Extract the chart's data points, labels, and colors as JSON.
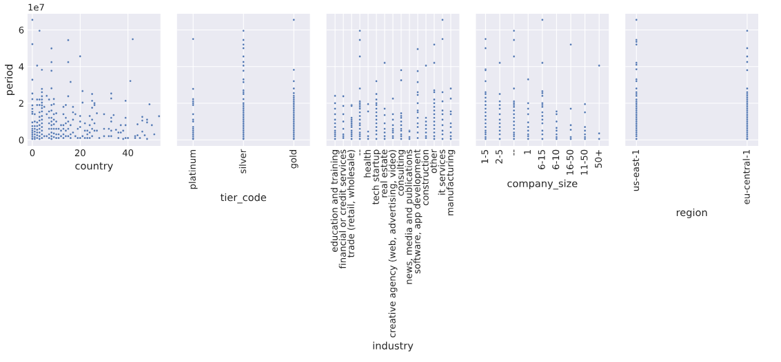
{
  "chart_data": [
    {
      "type": "scatter",
      "xlabel": "country",
      "ylabel": "period",
      "annotations": [
        "1e7"
      ],
      "xlim": [
        -2.0,
        53.6
      ],
      "xticks": [
        0,
        20,
        40
      ],
      "ylim": [
        -0.33,
        6.88
      ],
      "yticks": [
        0,
        2,
        4,
        6
      ],
      "grid": true,
      "marker": "circle",
      "series": [
        {
          "color": "#4c72b0",
          "x": [
            0,
            0,
            0,
            0,
            0,
            0,
            0,
            0,
            0,
            0,
            0,
            0,
            0,
            0,
            0,
            0,
            0,
            0,
            1,
            1,
            1,
            1,
            1,
            1,
            1,
            1,
            2,
            2,
            2,
            2,
            2,
            2,
            2,
            2,
            2,
            3,
            3,
            3,
            3,
            3,
            3,
            3,
            3,
            3,
            3,
            3,
            4,
            4,
            4,
            4,
            4,
            4,
            4,
            4,
            4,
            4,
            4,
            4,
            4,
            4,
            4,
            4,
            5,
            5,
            6,
            6,
            6,
            7,
            7,
            7,
            7,
            7,
            7,
            7,
            8,
            8,
            8,
            8,
            8,
            8,
            8,
            8,
            8,
            8,
            8,
            8,
            8,
            9,
            9,
            9,
            9,
            9,
            9,
            9,
            9,
            10,
            10,
            10,
            10,
            10,
            11,
            11,
            11,
            12,
            12,
            12,
            13,
            13,
            13,
            13,
            13,
            13,
            14,
            14,
            14,
            14,
            14,
            15,
            15,
            15,
            15,
            15,
            15,
            16,
            16,
            16,
            16,
            17,
            17,
            17,
            17,
            18,
            18,
            19,
            19,
            20,
            20,
            20,
            20,
            20,
            21,
            21,
            21,
            22,
            22,
            22,
            23,
            23,
            23,
            24,
            24,
            24,
            24,
            25,
            25,
            25,
            25,
            25,
            25,
            26,
            26,
            26,
            26,
            27,
            27,
            28,
            30,
            30,
            30,
            32,
            32,
            33,
            33,
            33,
            33,
            33,
            33,
            34,
            35,
            36,
            36,
            37,
            37,
            38,
            38,
            39,
            39,
            39,
            39,
            40,
            41,
            42,
            43,
            43,
            44,
            44,
            45,
            46,
            46,
            46,
            47,
            48,
            48,
            48,
            49,
            50,
            51,
            53
          ],
          "values": [
            6.55,
            5.22,
            3.28,
            2.53,
            2.22,
            1.88,
            1.69,
            1.53,
            1.42,
            0.95,
            0.75,
            0.6,
            0.5,
            0.4,
            0.3,
            0.2,
            0.1,
            0.05,
            1.4,
            1.0,
            0.75,
            0.6,
            0.45,
            0.3,
            0.15,
            0.05,
            4.05,
            2.2,
            1.9,
            0.95,
            0.75,
            0.55,
            0.4,
            0.25,
            0.1,
            5.95,
            2.2,
            1.9,
            1.5,
            1.25,
            1.05,
            0.8,
            0.6,
            0.4,
            0.2,
            0.05,
            3.82,
            2.78,
            2.6,
            2.38,
            2.2,
            2.03,
            1.88,
            1.73,
            1.55,
            1.3,
            1.1,
            0.9,
            0.7,
            0.5,
            0.3,
            0.1,
            1.8,
            0.2,
            2.4,
            1.4,
            0.2,
            2.2,
            1.55,
            1.2,
            0.9,
            0.6,
            0.3,
            0.1,
            4.99,
            4.24,
            3.77,
            2.81,
            1.9,
            1.6,
            1.2,
            1.0,
            0.8,
            0.6,
            0.4,
            0.2,
            0.05,
            2.23,
            1.95,
            1.4,
            1.1,
            0.85,
            0.6,
            0.35,
            0.15,
            1.45,
            1.0,
            0.6,
            0.3,
            0.1,
            0.6,
            0.3,
            0.1,
            0.8,
            0.5,
            0.2,
            1.8,
            1.4,
            0.8,
            0.6,
            0.3,
            0.1,
            1.9,
            1.2,
            0.9,
            0.5,
            0.2,
            5.44,
            4.24,
            2.38,
            1.0,
            0.6,
            0.2,
            3.16,
            0.8,
            0.3,
            0.1,
            1.8,
            1.5,
            1.1,
            0.4,
            1.4,
            0.2,
            0.6,
            0.1,
            4.56,
            1.3,
            1.0,
            0.7,
            0.1,
            2.66,
            2.03,
            0.2,
            0.9,
            0.5,
            0.1,
            0.5,
            0.3,
            0.1,
            1.3,
            0.8,
            0.4,
            0.1,
            2.5,
            2.13,
            1.75,
            1.1,
            0.6,
            0.2,
            2.0,
            1.9,
            0.9,
            0.5,
            1.45,
            0.5,
            0.1,
            1.4,
            0.6,
            0.2,
            0.6,
            0.2,
            2.53,
            2.26,
            1.2,
            1.0,
            0.5,
            0.2,
            1.35,
            0.55,
            0.4,
            0.1,
            0.8,
            0.4,
            0.5,
            0.05,
            2.13,
            1.2,
            0.8,
            0.1,
            0.1,
            3.21,
            5.49,
            0.2,
            0.1,
            0.85,
            0.25,
            0.1,
            1.25,
            1.05,
            0.45,
            0.25,
            1.1,
            0.95,
            0.05,
            1.94,
            0.8,
            0.3,
            1.29
          ]
        }
      ]
    },
    {
      "type": "scatter",
      "xlabel": "tier_code",
      "categories": [
        "platinum",
        "silver",
        "gold"
      ],
      "ylim": [
        -0.33,
        6.88
      ],
      "yticks": [
        0,
        2,
        4,
        6
      ],
      "tick_labels": "x",
      "grid": true,
      "marker": "circle",
      "series": [
        {
          "color": "#4c72b0",
          "x": [
            "platinum",
            "platinum",
            "platinum",
            "platinum",
            "platinum",
            "platinum",
            "platinum",
            "platinum",
            "platinum",
            "platinum",
            "platinum",
            "platinum",
            "platinum",
            "platinum",
            "platinum",
            "platinum",
            "platinum",
            "silver",
            "silver",
            "silver",
            "silver",
            "silver",
            "silver",
            "silver",
            "silver",
            "silver",
            "silver",
            "silver",
            "silver",
            "silver",
            "silver",
            "silver",
            "silver",
            "silver",
            "silver",
            "silver",
            "silver",
            "silver",
            "silver",
            "silver",
            "silver",
            "silver",
            "silver",
            "silver",
            "silver",
            "silver",
            "silver",
            "silver",
            "silver",
            "silver",
            "silver",
            "silver",
            "gold",
            "gold",
            "gold",
            "gold",
            "gold",
            "gold",
            "gold",
            "gold",
            "gold",
            "gold",
            "gold",
            "gold",
            "gold",
            "gold",
            "gold",
            "gold",
            "gold",
            "gold",
            "gold",
            "gold",
            "gold",
            "gold",
            "gold",
            "gold",
            "gold",
            "gold",
            "gold",
            "gold",
            "gold",
            "gold"
          ],
          "values": [
            5.5,
            2.78,
            2.22,
            2.1,
            2.0,
            1.9,
            1.4,
            1.1,
            1.0,
            0.7,
            0.6,
            0.5,
            0.4,
            0.3,
            0.2,
            0.1,
            0.05,
            5.95,
            5.45,
            5.2,
            5.0,
            4.55,
            4.25,
            4.05,
            3.77,
            3.3,
            3.15,
            2.7,
            2.6,
            2.5,
            2.22,
            2.0,
            1.9,
            1.8,
            1.7,
            1.6,
            1.5,
            1.4,
            1.3,
            1.2,
            1.1,
            1.0,
            0.9,
            0.8,
            0.7,
            0.6,
            0.5,
            0.4,
            0.3,
            0.2,
            0.1,
            0.05,
            6.55,
            3.82,
            3.2,
            2.8,
            2.55,
            2.4,
            2.3,
            2.2,
            2.1,
            2.0,
            1.9,
            1.8,
            1.7,
            1.6,
            1.5,
            1.4,
            1.3,
            1.2,
            1.1,
            1.0,
            0.9,
            0.8,
            0.7,
            0.6,
            0.5,
            0.4,
            0.3,
            0.2,
            0.1,
            0.05
          ]
        }
      ]
    },
    {
      "type": "scatter",
      "xlabel": "industry",
      "categories": [
        "education and training",
        "financial or credit services",
        "trade (retail, wholesale)",
        "--",
        "health",
        "tech startup",
        "real estate",
        "creative agency (web, advertising, video)",
        "consulting",
        "news, media and publications",
        "software, app development",
        "construction",
        "other",
        "it services",
        "manufacturing"
      ],
      "ylim": [
        -0.33,
        6.88
      ],
      "yticks": [
        0,
        2,
        4,
        6
      ],
      "tick_labels": "x",
      "grid": true,
      "marker": "circle",
      "series": [
        {
          "color": "#4c72b0",
          "x": [
            "education and training",
            "education and training",
            "education and training",
            "education and training",
            "education and training",
            "education and training",
            "education and training",
            "education and training",
            "education and training",
            "education and training",
            "education and training",
            "education and training",
            "financial or credit services",
            "financial or credit services",
            "financial or credit services",
            "financial or credit services",
            "financial or credit services",
            "financial or credit services",
            "financial or credit services",
            "financial or credit services",
            "trade (retail, wholesale)",
            "trade (retail, wholesale)",
            "trade (retail, wholesale)",
            "trade (retail, wholesale)",
            "trade (retail, wholesale)",
            "trade (retail, wholesale)",
            "trade (retail, wholesale)",
            "trade (retail, wholesale)",
            "trade (retail, wholesale)",
            "trade (retail, wholesale)",
            "trade (retail, wholesale)",
            "trade (retail, wholesale)",
            "trade (retail, wholesale)",
            "--",
            "--",
            "--",
            "--",
            "--",
            "--",
            "--",
            "--",
            "--",
            "--",
            "--",
            "--",
            "--",
            "--",
            "--",
            "--",
            "--",
            "--",
            "--",
            "health",
            "health",
            "health",
            "health",
            "health",
            "tech startup",
            "tech startup",
            "tech startup",
            "tech startup",
            "tech startup",
            "tech startup",
            "tech startup",
            "tech startup",
            "tech startup",
            "tech startup",
            "tech startup",
            "tech startup",
            "tech startup",
            "tech startup",
            "real estate",
            "real estate",
            "real estate",
            "real estate",
            "real estate",
            "real estate",
            "real estate",
            "real estate",
            "creative agency (web, advertising, video)",
            "creative agency (web, advertising, video)",
            "creative agency (web, advertising, video)",
            "creative agency (web, advertising, video)",
            "creative agency (web, advertising, video)",
            "creative agency (web, advertising, video)",
            "creative agency (web, advertising, video)",
            "creative agency (web, advertising, video)",
            "creative agency (web, advertising, video)",
            "consulting",
            "consulting",
            "consulting",
            "consulting",
            "consulting",
            "consulting",
            "consulting",
            "consulting",
            "consulting",
            "consulting",
            "consulting",
            "consulting",
            "news, media and publications",
            "news, media and publications",
            "news, media and publications",
            "news, media and publications",
            "software, app development",
            "software, app development",
            "software, app development",
            "software, app development",
            "software, app development",
            "software, app development",
            "software, app development",
            "software, app development",
            "software, app development",
            "software, app development",
            "software, app development",
            "software, app development",
            "software, app development",
            "construction",
            "construction",
            "construction",
            "construction",
            "construction",
            "construction",
            "construction",
            "construction",
            "other",
            "other",
            "other",
            "other",
            "other",
            "other",
            "other",
            "other",
            "other",
            "other",
            "other",
            "other",
            "other",
            "other",
            "other",
            "other",
            "it services",
            "it services",
            "it services",
            "it services",
            "it services",
            "it services",
            "it services",
            "it services",
            "it services",
            "it services",
            "it services",
            "manufacturing",
            "manufacturing",
            "manufacturing",
            "manufacturing",
            "manufacturing",
            "manufacturing",
            "manufacturing",
            "manufacturing",
            "manufacturing"
          ],
          "values": [
            2.4,
            2.0,
            1.7,
            1.4,
            1.1,
            0.9,
            0.7,
            0.5,
            0.4,
            0.3,
            0.2,
            0.05,
            2.38,
            1.85,
            1.4,
            1.0,
            0.6,
            0.3,
            0.2,
            0.1,
            1.9,
            1.85,
            1.2,
            1.1,
            1.0,
            0.9,
            0.8,
            0.7,
            0.5,
            0.4,
            0.3,
            0.2,
            0.05,
            5.95,
            5.45,
            4.55,
            2.8,
            2.1,
            2.0,
            1.9,
            1.8,
            1.7,
            1.5,
            1.3,
            1.1,
            0.9,
            0.8,
            0.6,
            0.4,
            0.3,
            0.2,
            0.05,
            1.95,
            1.55,
            0.45,
            0.2,
            0.05,
            3.2,
            2.5,
            2.2,
            2.0,
            1.9,
            1.7,
            1.5,
            1.3,
            1.1,
            0.9,
            0.7,
            0.5,
            0.3,
            0.05,
            4.2,
            1.7,
            1.35,
            0.9,
            0.6,
            0.4,
            0.2,
            0.05,
            2.25,
            1.4,
            1.1,
            0.8,
            0.6,
            0.5,
            0.4,
            0.2,
            0.1,
            3.8,
            3.25,
            1.45,
            1.3,
            1.2,
            1.0,
            0.8,
            0.6,
            0.5,
            0.3,
            0.2,
            0.05,
            0.5,
            0.45,
            0.15,
            0.05,
            4.95,
            3.75,
            3.15,
            2.6,
            2.45,
            2.0,
            1.6,
            1.5,
            1.2,
            0.9,
            0.7,
            0.4,
            0.1,
            4.05,
            1.2,
            1.0,
            0.8,
            0.6,
            0.4,
            0.2,
            0.1,
            5.2,
            4.2,
            2.7,
            2.6,
            2.2,
            2.0,
            1.8,
            1.6,
            1.4,
            1.2,
            1.0,
            0.8,
            0.6,
            0.4,
            0.2,
            0.05,
            6.55,
            5.5,
            2.6,
            2.1,
            1.6,
            1.4,
            1.1,
            0.8,
            0.5,
            0.3,
            0.05,
            2.8,
            2.25,
            1.55,
            1.4,
            0.9,
            0.7,
            0.4,
            0.2,
            0.05
          ]
        }
      ]
    },
    {
      "type": "scatter",
      "xlabel": "company_size",
      "categories": [
        "1-5",
        "2-5",
        "--",
        "1",
        "6-15",
        "6-10",
        "16-50",
        "11-50",
        "50+"
      ],
      "ylim": [
        -0.33,
        6.88
      ],
      "yticks": [
        0,
        2,
        4,
        6
      ],
      "tick_labels": "x",
      "grid": true,
      "marker": "circle",
      "series": [
        {
          "color": "#4c72b0",
          "x": [
            "1-5",
            "1-5",
            "1-5",
            "1-5",
            "1-5",
            "1-5",
            "1-5",
            "1-5",
            "1-5",
            "1-5",
            "1-5",
            "1-5",
            "1-5",
            "1-5",
            "1-5",
            "1-5",
            "1-5",
            "1-5",
            "1-5",
            "1-5",
            "1-5",
            "2-5",
            "2-5",
            "2-5",
            "2-5",
            "2-5",
            "2-5",
            "2-5",
            "2-5",
            "2-5",
            "2-5",
            "2-5",
            "2-5",
            "--",
            "--",
            "--",
            "--",
            "--",
            "--",
            "--",
            "--",
            "--",
            "--",
            "--",
            "--",
            "--",
            "--",
            "--",
            "--",
            "--",
            "--",
            "1",
            "1",
            "1",
            "1",
            "1",
            "1",
            "1",
            "1",
            "1",
            "1",
            "6-15",
            "6-15",
            "6-15",
            "6-15",
            "6-15",
            "6-15",
            "6-15",
            "6-15",
            "6-15",
            "6-15",
            "6-15",
            "6-15",
            "6-15",
            "6-15",
            "6-15",
            "6-10",
            "6-10",
            "6-10",
            "6-10",
            "6-10",
            "6-10",
            "6-10",
            "6-10",
            "16-50",
            "16-50",
            "16-50",
            "16-50",
            "16-50",
            "16-50",
            "11-50",
            "11-50",
            "11-50",
            "11-50",
            "11-50",
            "11-50",
            "11-50",
            "50+",
            "50+",
            "50+"
          ],
          "values": [
            5.5,
            5.0,
            3.85,
            3.8,
            3.2,
            2.6,
            2.5,
            2.3,
            2.1,
            1.9,
            1.7,
            1.5,
            1.3,
            1.1,
            0.9,
            0.7,
            0.5,
            0.4,
            0.3,
            0.15,
            0.05,
            4.2,
            2.5,
            2.1,
            1.9,
            1.7,
            1.4,
            1.1,
            0.9,
            0.7,
            0.5,
            0.3,
            0.05,
            5.95,
            5.45,
            4.55,
            2.8,
            2.1,
            2.0,
            1.9,
            1.8,
            1.6,
            1.4,
            1.2,
            1.0,
            0.8,
            0.6,
            0.4,
            0.3,
            0.2,
            0.05,
            3.3,
            2.0,
            1.7,
            1.4,
            0.95,
            0.7,
            0.5,
            0.3,
            0.2,
            0.05,
            6.55,
            4.2,
            2.65,
            2.55,
            2.4,
            2.0,
            1.9,
            1.8,
            1.5,
            1.3,
            1.1,
            0.9,
            0.5,
            0.3,
            0.05,
            1.55,
            1.4,
            1.0,
            0.65,
            0.5,
            0.3,
            0.15,
            0.05,
            5.2,
            1.7,
            0.8,
            0.55,
            0.15,
            0.05,
            1.95,
            1.5,
            0.7,
            0.5,
            0.3,
            0.15,
            0.05,
            4.05,
            0.35,
            0.05
          ]
        }
      ]
    },
    {
      "type": "scatter",
      "xlabel": "region",
      "categories": [
        "us-east-1",
        "eu-central-1"
      ],
      "ylim": [
        -0.33,
        6.88
      ],
      "yticks": [
        0,
        2,
        4,
        6
      ],
      "tick_labels": "x",
      "grid": true,
      "marker": "circle",
      "series": [
        {
          "color": "#4c72b0",
          "x": [
            "us-east-1",
            "us-east-1",
            "us-east-1",
            "us-east-1",
            "us-east-1",
            "us-east-1",
            "us-east-1",
            "us-east-1",
            "us-east-1",
            "us-east-1",
            "us-east-1",
            "us-east-1",
            "us-east-1",
            "us-east-1",
            "us-east-1",
            "us-east-1",
            "us-east-1",
            "us-east-1",
            "us-east-1",
            "us-east-1",
            "us-east-1",
            "us-east-1",
            "us-east-1",
            "us-east-1",
            "us-east-1",
            "us-east-1",
            "us-east-1",
            "us-east-1",
            "us-east-1",
            "us-east-1",
            "us-east-1",
            "us-east-1",
            "us-east-1",
            "us-east-1",
            "us-east-1",
            "eu-central-1",
            "eu-central-1",
            "eu-central-1",
            "eu-central-1",
            "eu-central-1",
            "eu-central-1",
            "eu-central-1",
            "eu-central-1",
            "eu-central-1",
            "eu-central-1",
            "eu-central-1",
            "eu-central-1",
            "eu-central-1",
            "eu-central-1",
            "eu-central-1",
            "eu-central-1",
            "eu-central-1",
            "eu-central-1",
            "eu-central-1",
            "eu-central-1",
            "eu-central-1",
            "eu-central-1",
            "eu-central-1",
            "eu-central-1",
            "eu-central-1",
            "eu-central-1",
            "eu-central-1",
            "eu-central-1",
            "eu-central-1",
            "eu-central-1",
            "eu-central-1",
            "eu-central-1",
            "eu-central-1"
          ],
          "values": [
            6.55,
            5.45,
            5.35,
            5.2,
            4.2,
            4.1,
            3.85,
            3.3,
            3.2,
            2.8,
            2.6,
            2.5,
            2.4,
            2.2,
            2.1,
            2.0,
            1.9,
            1.8,
            1.7,
            1.6,
            1.5,
            1.4,
            1.3,
            1.2,
            1.1,
            1.0,
            0.9,
            0.8,
            0.7,
            0.6,
            0.5,
            0.4,
            0.3,
            0.2,
            0.05,
            5.95,
            5.0,
            4.55,
            4.25,
            3.8,
            2.8,
            2.6,
            2.5,
            2.4,
            2.3,
            2.2,
            2.1,
            2.0,
            1.9,
            1.8,
            1.7,
            1.6,
            1.5,
            1.4,
            1.3,
            1.2,
            1.1,
            1.0,
            0.9,
            0.8,
            0.7,
            0.6,
            0.5,
            0.4,
            0.3,
            0.2,
            0.1,
            0.05
          ]
        }
      ]
    }
  ]
}
